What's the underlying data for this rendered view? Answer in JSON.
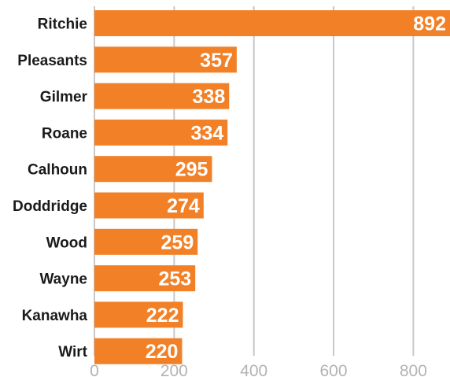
{
  "chart_data": {
    "type": "bar",
    "orientation": "horizontal",
    "title": "",
    "xlabel": "",
    "ylabel": "",
    "categories": [
      "Ritchie",
      "Pleasants",
      "Gilmer",
      "Roane",
      "Calhoun",
      "Doddridge",
      "Wood",
      "Wayne",
      "Kanawha",
      "Wirt"
    ],
    "values": [
      892,
      357,
      338,
      334,
      295,
      274,
      259,
      253,
      222,
      220
    ],
    "xlim": [
      0,
      892
    ],
    "xticks": [
      0,
      200,
      400,
      600,
      800
    ],
    "grid": "vertical",
    "data_labels": true,
    "colors": {
      "bar": "#f28027",
      "grid": "#c8c8c8",
      "tick_text": "#b3b3b3",
      "label_text": "#1a1a1a",
      "value_text": "#ffffff"
    }
  }
}
